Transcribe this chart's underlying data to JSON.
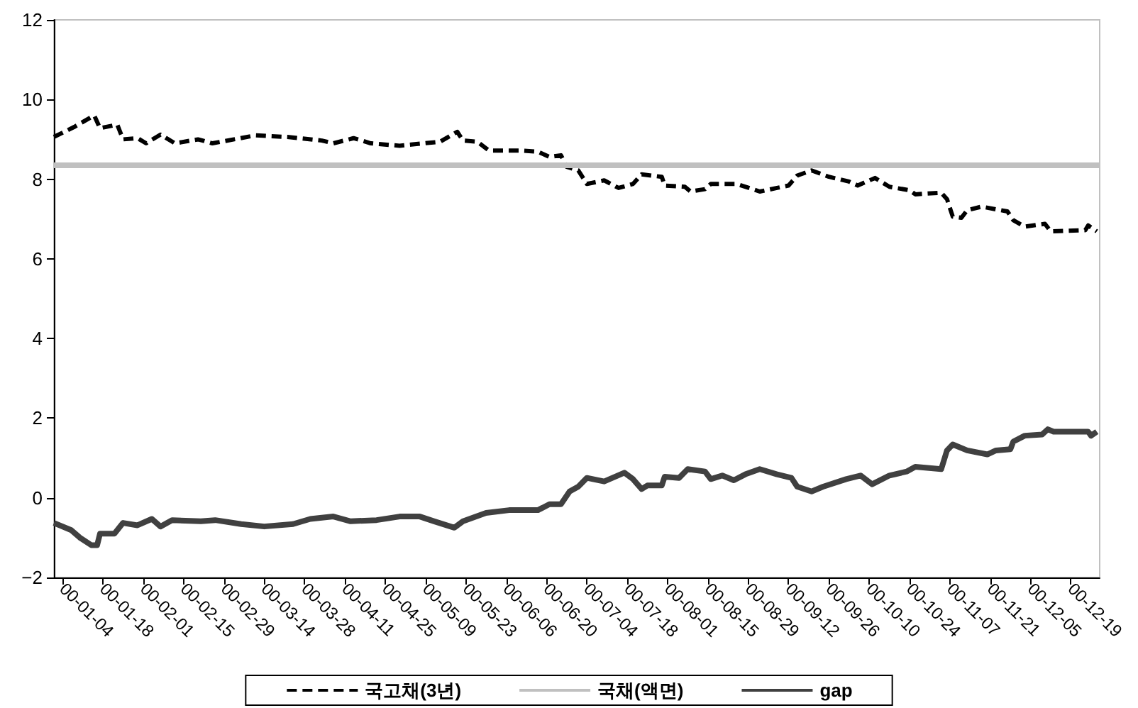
{
  "chart_data": {
    "type": "line",
    "xlim": [
      "--01-01",
      "--12-29"
    ],
    "xticks": [
      {
        "value": "--01-04",
        "label": "00-01-04"
      },
      {
        "value": "--01-18",
        "label": "00-01-18"
      },
      {
        "value": "--02-01",
        "label": "00-02-01"
      },
      {
        "value": "--02-15",
        "label": "00-02-15"
      },
      {
        "value": "--02-29",
        "label": "00-02-29"
      },
      {
        "value": "--03-14",
        "label": "00-03-14"
      },
      {
        "value": "--03-28",
        "label": "00-03-28"
      },
      {
        "value": "--04-11",
        "label": "00-04-11"
      },
      {
        "value": "--04-25",
        "label": "00-04-25"
      },
      {
        "value": "--05-09",
        "label": "00-05-09"
      },
      {
        "value": "--05-23",
        "label": "00-05-23"
      },
      {
        "value": "--06-06",
        "label": "00-06-06"
      },
      {
        "value": "--06-20",
        "label": "00-06-20"
      },
      {
        "value": "--07-04",
        "label": "00-07-04"
      },
      {
        "value": "--07-18",
        "label": "00-07-18"
      },
      {
        "value": "--08-01",
        "label": "00-08-01"
      },
      {
        "value": "--08-15",
        "label": "00-08-15"
      },
      {
        "value": "--08-29",
        "label": "00-08-29"
      },
      {
        "value": "--09-12",
        "label": "00-09-12"
      },
      {
        "value": "--09-26",
        "label": "00-09-26"
      },
      {
        "value": "--10-10",
        "label": "00-10-10"
      },
      {
        "value": "--10-24",
        "label": "00-10-24"
      },
      {
        "value": "--11-07",
        "label": "00-11-07"
      },
      {
        "value": "--11-21",
        "label": "00-11-21"
      },
      {
        "value": "--12-05",
        "label": "00-12-05"
      },
      {
        "value": "--12-19",
        "label": "00-12-19"
      }
    ],
    "ylim": [
      -2,
      12
    ],
    "yticks": [
      {
        "value": -2,
        "label": "−2"
      },
      0,
      2,
      4,
      6,
      8,
      10,
      12
    ],
    "grid": false,
    "legend": "bottom",
    "marker": "none",
    "series": [
      {
        "name": "국고채(3년)",
        "color": "#000000",
        "line_style": "dashed",
        "x": [
          "--01-01",
          "--01-08",
          "--01-15",
          "--01-17",
          "--01-23",
          "--01-25",
          "--01-30",
          "--02-02",
          "--02-07",
          "--02-12",
          "--02-20",
          "--02-25",
          "--03-11",
          "--03-22",
          "--04-03",
          "--04-07",
          "--04-14",
          "--04-20",
          "--04-30",
          "--05-04",
          "--05-14",
          "--05-20",
          "--05-22",
          "--05-27",
          "--05-31",
          "--06-11",
          "--06-17",
          "--06-21",
          "--06-25",
          "--06-27",
          "--07-01",
          "--07-04",
          "--07-10",
          "--07-15",
          "--07-20",
          "--07-23",
          "--07-30",
          "--07-31",
          "--08-07",
          "--08-09",
          "--08-14",
          "--08-16",
          "--08-25",
          "--09-02",
          "--09-08",
          "--09-12",
          "--09-15",
          "--09-20",
          "--09-26",
          "--10-03",
          "--10-06",
          "--10-12",
          "--10-17",
          "--10-24",
          "--10-26",
          "--11-04",
          "--11-06",
          "--11-08",
          "--11-11",
          "--11-13",
          "--11-18",
          "--11-27",
          "--11-29",
          "--12-03",
          "--12-10",
          "--12-12",
          "--12-24",
          "--12-25",
          "--12-28"
        ],
        "values": [
          9.06,
          9.31,
          9.6,
          9.28,
          9.37,
          9.0,
          9.03,
          8.9,
          9.12,
          8.9,
          9.0,
          8.9,
          9.1,
          9.06,
          8.97,
          8.9,
          9.03,
          8.9,
          8.84,
          8.87,
          8.94,
          9.19,
          8.97,
          8.94,
          8.72,
          8.72,
          8.69,
          8.56,
          8.6,
          8.31,
          8.22,
          7.88,
          7.97,
          7.78,
          7.88,
          8.12,
          8.06,
          7.84,
          7.81,
          7.69,
          7.75,
          7.88,
          7.88,
          7.69,
          7.78,
          7.84,
          8.09,
          8.22,
          8.06,
          7.94,
          7.84,
          8.03,
          7.81,
          7.72,
          7.62,
          7.66,
          7.5,
          7.06,
          7.03,
          7.22,
          7.31,
          7.19,
          6.97,
          6.81,
          6.88,
          6.69,
          6.72,
          6.84,
          6.69
        ]
      },
      {
        "name": "국채(액면)",
        "color": "#c0c0c0",
        "line_style": "solid",
        "x": [
          "--01-01",
          "--12-29"
        ],
        "values": [
          8.35,
          8.35
        ]
      },
      {
        "name": "gap",
        "color": "#404040",
        "line_style": "solid",
        "x": [
          "--01-01",
          "--01-07",
          "--01-10",
          "--01-14",
          "--01-16",
          "--01-17",
          "--01-22",
          "--01-25",
          "--01-30",
          "--02-04",
          "--02-07",
          "--02-11",
          "--02-21",
          "--02-26",
          "--03-06",
          "--03-14",
          "--03-24",
          "--03-30",
          "--04-07",
          "--04-13",
          "--04-22",
          "--04-30",
          "--05-07",
          "--05-12",
          "--05-19",
          "--05-22",
          "--05-30",
          "--06-07",
          "--06-17",
          "--06-21",
          "--06-25",
          "--06-28",
          "--07-01",
          "--07-04",
          "--07-10",
          "--07-17",
          "--07-20",
          "--07-23",
          "--07-25",
          "--07-30",
          "--07-31",
          "--08-05",
          "--08-08",
          "--08-14",
          "--08-16",
          "--08-20",
          "--08-24",
          "--08-28",
          "--09-02",
          "--09-08",
          "--09-13",
          "--09-15",
          "--09-20",
          "--09-24",
          "--10-02",
          "--10-07",
          "--10-11",
          "--10-17",
          "--10-23",
          "--10-26",
          "--11-04",
          "--11-06",
          "--11-08",
          "--11-13",
          "--11-20",
          "--11-23",
          "--11-28",
          "--11-29",
          "--12-03",
          "--12-09",
          "--12-11",
          "--12-13",
          "--12-25",
          "--12-26",
          "--12-28"
        ],
        "values": [
          -0.63,
          -0.81,
          -1.0,
          -1.19,
          -1.19,
          -0.9,
          -0.9,
          -0.63,
          -0.69,
          -0.53,
          -0.72,
          -0.56,
          -0.59,
          -0.56,
          -0.66,
          -0.72,
          -0.66,
          -0.53,
          -0.47,
          -0.59,
          -0.56,
          -0.47,
          -0.47,
          -0.59,
          -0.75,
          -0.59,
          -0.38,
          -0.31,
          -0.31,
          -0.16,
          -0.16,
          0.16,
          0.28,
          0.5,
          0.41,
          0.63,
          0.47,
          0.22,
          0.31,
          0.31,
          0.53,
          0.5,
          0.72,
          0.66,
          0.47,
          0.56,
          0.44,
          0.59,
          0.72,
          0.59,
          0.5,
          0.28,
          0.16,
          0.28,
          0.47,
          0.56,
          0.34,
          0.56,
          0.66,
          0.78,
          0.72,
          1.19,
          1.34,
          1.19,
          1.09,
          1.19,
          1.22,
          1.41,
          1.56,
          1.59,
          1.72,
          1.66,
          1.66,
          1.56,
          1.66
        ]
      }
    ]
  }
}
